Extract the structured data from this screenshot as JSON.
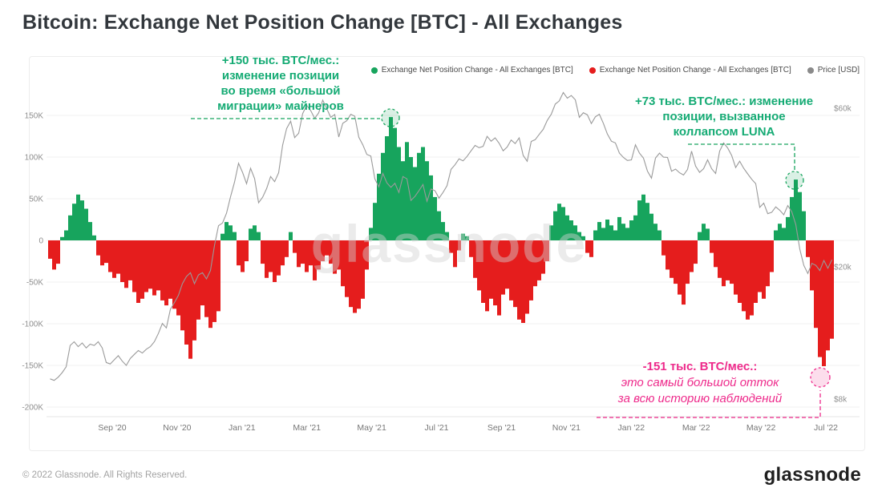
{
  "title": "Bitcoin: Exchange Net Position Change [BTC] - All Exchanges",
  "legend": {
    "items": [
      {
        "label": "Exchange Net Position Change - All Exchanges [BTC]",
        "color": "#17a45d"
      },
      {
        "label": "Exchange Net Position Change - All Exchanges [BTC]",
        "color": "#e51d1d"
      },
      {
        "label": "Price [USD]",
        "color": "#8a8a8a"
      }
    ]
  },
  "annotations": {
    "miners": {
      "color": "#15ab74",
      "lines": [
        "+150  тыс. BTC/мес.:",
        "изменение позиции",
        "во время «большой",
        "миграции» майнеров"
      ]
    },
    "luna": {
      "color": "#15ab74",
      "lines": [
        "+73 тыс. BTC/мес.: изменение",
        "позиции, вызванное",
        "коллапсом LUNA"
      ]
    },
    "outflow": {
      "color": "#ee2a8b",
      "line1": "-151  тыс. BTC/мес.:",
      "line2": "это самый большой отток",
      "line3": "за всю историю наблюдений"
    }
  },
  "watermark": "glassnode",
  "footer": {
    "copyright": "© 2022 Glassnode. All Rights Reserved.",
    "logo": "glassnode"
  },
  "chart_data": {
    "type": "bar+line",
    "title": "Bitcoin: Exchange Net Position Change [BTC] - All Exchanges",
    "legend_position": "top",
    "grid": "horizontal",
    "colors": {
      "green": "#17a45d",
      "red": "#e51d1d",
      "pink": "#ee2a8b",
      "price": "#9a9a9a",
      "grid": "#f0f0f0",
      "axis": "#e6e6e6",
      "tick_text": "#8f8f8f",
      "x_tick_text": "#777777"
    },
    "x_ticks": [
      "Sep '20",
      "Nov '20",
      "Jan '21",
      "Mar '21",
      "May '21",
      "Jul '21",
      "Sep '21",
      "Nov '21",
      "Jan '22",
      "Mar '22",
      "May '22",
      "Jul '22"
    ],
    "y_left": {
      "unit": "BTC (thousands)",
      "ticks": [
        "150K",
        "100K",
        "50K",
        "0",
        "-50K",
        "-100K",
        "-150K",
        "-200K"
      ],
      "values": [
        150,
        100,
        50,
        0,
        -50,
        -100,
        -150,
        -200
      ],
      "range": [
        -220,
        170
      ]
    },
    "y_right": {
      "unit": "USD",
      "scale": "log",
      "ticks": [
        "$60k",
        "$20k",
        "$8k"
      ],
      "values": [
        60,
        20,
        8
      ]
    },
    "bars": {
      "name": "Exchange Net Position Change - All Exchanges [BTC]",
      "unit": "K BTC per month",
      "sampling": "approx 3.7-day buckets, Jul 2020 - Jul 2022",
      "values_k": [
        -22,
        -35,
        -28,
        4,
        12,
        30,
        44,
        55,
        48,
        38,
        22,
        6,
        -18,
        -30,
        -27,
        -38,
        -45,
        -40,
        -50,
        -57,
        -48,
        -62,
        -75,
        -70,
        -62,
        -58,
        -66,
        -60,
        -72,
        -78,
        -70,
        -82,
        -90,
        -108,
        -125,
        -142,
        -120,
        -95,
        -78,
        -92,
        -105,
        -98,
        -85,
        8,
        22,
        18,
        10,
        -30,
        -38,
        -25,
        14,
        18,
        10,
        -28,
        -45,
        -38,
        -50,
        -42,
        -30,
        -20,
        10,
        -15,
        -32,
        -28,
        -38,
        -30,
        -48,
        -35,
        -25,
        -18,
        -28,
        -40,
        -35,
        -55,
        -68,
        -80,
        -87,
        -82,
        -70,
        -35,
        15,
        45,
        80,
        105,
        125,
        148,
        135,
        112,
        95,
        118,
        100,
        88,
        105,
        112,
        95,
        78,
        52,
        35,
        22,
        10,
        -15,
        -32,
        -12,
        8,
        5,
        -20,
        -45,
        -60,
        -75,
        -85,
        -70,
        -78,
        -90,
        -65,
        -58,
        -72,
        -80,
        -95,
        -99,
        -88,
        -72,
        -55,
        -48,
        -40,
        -25,
        18,
        35,
        44,
        40,
        30,
        24,
        18,
        10,
        5,
        -15,
        -20,
        12,
        22,
        15,
        25,
        18,
        12,
        28,
        20,
        15,
        24,
        30,
        48,
        55,
        45,
        32,
        20,
        12,
        -18,
        -35,
        -45,
        -52,
        -65,
        -77,
        -52,
        -38,
        -28,
        10,
        20,
        14,
        -15,
        -32,
        -45,
        -55,
        -48,
        -52,
        -65,
        -75,
        -85,
        -95,
        -90,
        -75,
        -62,
        -70,
        -55,
        -38,
        12,
        20,
        15,
        28,
        52,
        73,
        58,
        35,
        -20,
        -60,
        -105,
        -140,
        -151,
        -132,
        -118
      ]
    },
    "price_line": {
      "name": "Price [USD]",
      "unit": "USD (thousands)",
      "values_usd_k": [
        9.2,
        9.1,
        9.3,
        9.6,
        10.0,
        11.6,
        11.9,
        11.5,
        11.8,
        11.4,
        11.7,
        11.6,
        11.9,
        11.4,
        10.3,
        10.2,
        10.5,
        10.8,
        10.4,
        10.1,
        10.6,
        10.9,
        11.2,
        11.0,
        11.3,
        11.5,
        11.9,
        12.6,
        13.5,
        13.1,
        14.9,
        15.6,
        16.4,
        17.8,
        18.7,
        19.2,
        17.8,
        18.9,
        19.2,
        18.4,
        19.5,
        23.2,
        26.6,
        27.1,
        29.0,
        32.5,
        36.0,
        41.0,
        38.5,
        35.6,
        39.6,
        36.9,
        31.2,
        32.4,
        34.4,
        37.4,
        36.1,
        38.4,
        46.5,
        52.2,
        54.9,
        49.0,
        50.5,
        57.9,
        61.3,
        59.1,
        56.0,
        58.2,
        63.5,
        59.9,
        56.4,
        57.5,
        49.2,
        54.1,
        55.1,
        57.6,
        56.8,
        49.1,
        46.6,
        43.6,
        43.1,
        36.8,
        34.8,
        38.2,
        35.8,
        34.7,
        35.7,
        33.5,
        37.4,
        36.8,
        31.7,
        32.6,
        33.9,
        35.4,
        31.5,
        34.3,
        33.9,
        32.2,
        33.5,
        35.1,
        39.3,
        40.6,
        42.3,
        41.7,
        43.0,
        44.7,
        46.4,
        45.7,
        46.1,
        49.4,
        47.8,
        48.9,
        47.1,
        44.7,
        45.9,
        48.2,
        47.0,
        48.9,
        43.3,
        41.6,
        47.7,
        48.3,
        50.1,
        51.9,
        55.2,
        57.6,
        61.8,
        63.2,
        67.0,
        64.4,
        65.6,
        63.7,
        56.4,
        58.2,
        57.4,
        54.0,
        56.6,
        57.6,
        54.1,
        50.2,
        47.8,
        47.2,
        44.0,
        42.7,
        41.8,
        42.0,
        46.6,
        44.0,
        42.5,
        38.8,
        37.0,
        42.5,
        44.0,
        42.8,
        42.7,
        38.8,
        39.4,
        38.4,
        37.8,
        39.3,
        44.6,
        40.2,
        38.5,
        39.5,
        42.0,
        39.5,
        38.2,
        44.6,
        47.2,
        45.6,
        43.3,
        39.8,
        41.6,
        39.6,
        38.1,
        36.7,
        35.6,
        30.2,
        31.1,
        28.9,
        29.2,
        30.3,
        29.6,
        28.7,
        30.6,
        29.3,
        26.8,
        22.6,
        20.2,
        19.1,
        20.5,
        20.2,
        19.5,
        20.9,
        19.8,
        21.0
      ]
    },
    "highlights": [
      {
        "label": "+150 тыс. BTC/мес. (миграция майнеров)",
        "value_k": 150,
        "approx_date": "May 2021"
      },
      {
        "label": "+73 тыс. BTC/мес. (коллапс LUNA)",
        "value_k": 73,
        "approx_date": "May 2022"
      },
      {
        "label": "-151 тыс. BTC/мес. (самый большой отток)",
        "value_k": -151,
        "approx_date": "Jun-Jul 2022"
      }
    ]
  }
}
